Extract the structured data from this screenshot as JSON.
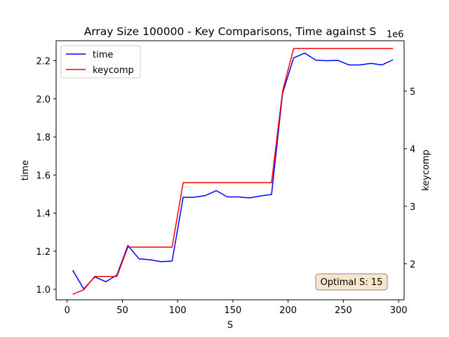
{
  "chart_data": {
    "type": "line",
    "title": "Array Size 100000 - Key Comparisons, Time against S",
    "xlabel": "S",
    "ylabel": "time",
    "y2label": "keycomp",
    "y2_offset_label": "1e6",
    "xlim": [
      -10,
      305
    ],
    "ylim": [
      0.945,
      2.305
    ],
    "y2lim": [
      1.375,
      5.875
    ],
    "xticks": [
      0,
      50,
      100,
      150,
      200,
      250,
      300
    ],
    "yticks": [
      1.0,
      1.2,
      1.4,
      1.6,
      1.8,
      2.0,
      2.2
    ],
    "y2ticks": [
      2,
      3,
      4,
      5
    ],
    "grid": false,
    "legend_position": "upper-left",
    "x": [
      5,
      15,
      25,
      35,
      45,
      55,
      65,
      75,
      85,
      95,
      105,
      115,
      125,
      135,
      145,
      155,
      165,
      175,
      185,
      195,
      205,
      215,
      225,
      235,
      245,
      255,
      265,
      275,
      285,
      295
    ],
    "series": [
      {
        "name": "time",
        "axis": "left",
        "color": "#0000ff",
        "values": [
          1.1,
          1.002,
          1.065,
          1.04,
          1.075,
          1.23,
          1.16,
          1.155,
          1.145,
          1.148,
          1.483,
          1.483,
          1.492,
          1.518,
          1.485,
          1.485,
          1.48,
          1.49,
          1.498,
          2.03,
          2.215,
          2.24,
          2.203,
          2.2,
          2.202,
          2.178,
          2.178,
          2.186,
          2.178,
          2.205
        ]
      },
      {
        "name": "keycomp",
        "axis": "right",
        "color": "#ff0000",
        "values": [
          1.47,
          1.55,
          1.78,
          1.78,
          1.78,
          2.29,
          2.29,
          2.29,
          2.29,
          2.29,
          3.41,
          3.41,
          3.41,
          3.41,
          3.41,
          3.41,
          3.41,
          3.41,
          3.41,
          5.0,
          5.74,
          5.74,
          5.74,
          5.74,
          5.74,
          5.74,
          5.74,
          5.74,
          5.74,
          5.74
        ]
      }
    ],
    "annotation": {
      "text": "Optimal S: 15",
      "position": "bottom-right",
      "background": "#f5e6cc",
      "border": "#888888"
    }
  }
}
